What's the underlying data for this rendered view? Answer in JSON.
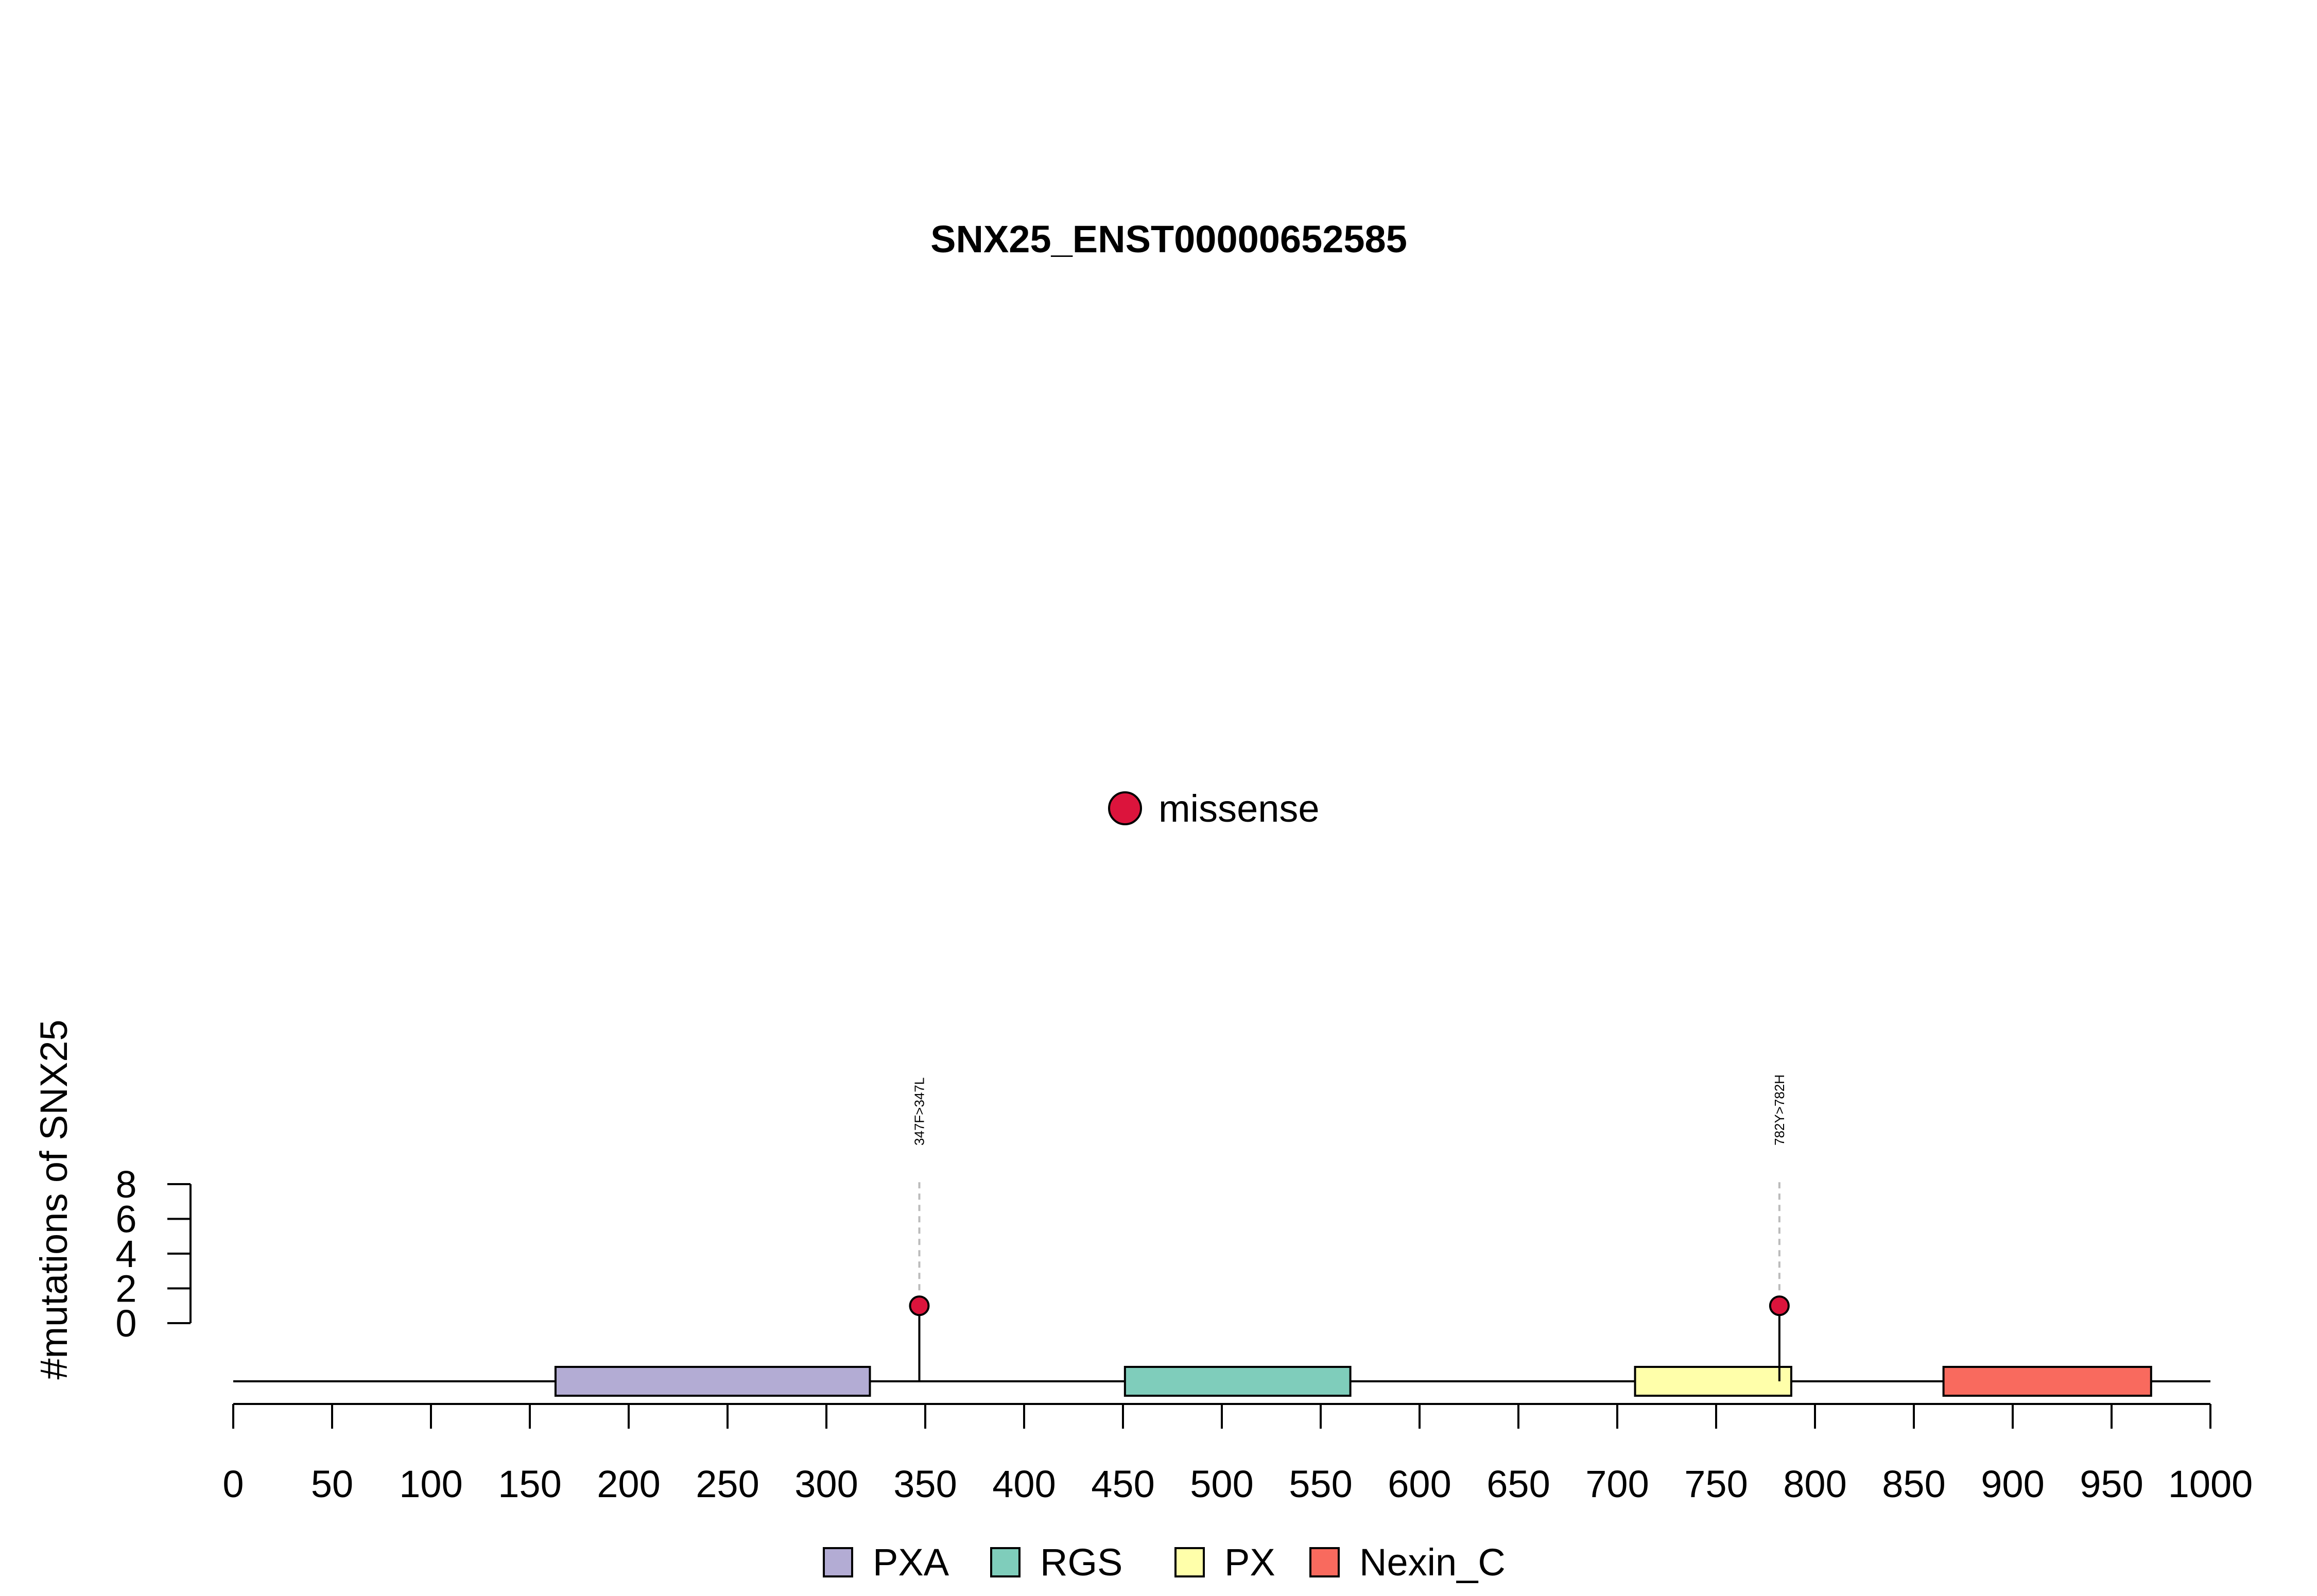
{
  "chart_data": {
    "type": "lollipop",
    "title": "SNX25_ENST00000652585",
    "ylabel": "#mutations of SNX25",
    "xlim": [
      0,
      1000
    ],
    "x_ticks": [
      0,
      50,
      100,
      150,
      200,
      250,
      300,
      350,
      400,
      450,
      500,
      550,
      600,
      650,
      700,
      750,
      800,
      850,
      900,
      950,
      1000
    ],
    "y_ticks": [
      0,
      2,
      4,
      6,
      8
    ],
    "ylim": [
      0,
      8
    ],
    "mutation_legend": [
      {
        "label": "missense",
        "color": "#dc143c"
      }
    ],
    "domains": [
      {
        "name": "PXA",
        "start": 163,
        "end": 322,
        "color": "#b3acd4"
      },
      {
        "name": "RGS",
        "start": 451,
        "end": 565,
        "color": "#7fcdbb"
      },
      {
        "name": "PX",
        "start": 709,
        "end": 788,
        "color": "#ffffaa"
      },
      {
        "name": "Nexin_C",
        "start": 865,
        "end": 970,
        "color": "#f96a5e"
      }
    ],
    "mutations": [
      {
        "position": 347,
        "count": 1,
        "label": "347F>347L",
        "type": "missense"
      },
      {
        "position": 782,
        "count": 1,
        "label": "782Y>782H",
        "type": "missense"
      }
    ]
  }
}
